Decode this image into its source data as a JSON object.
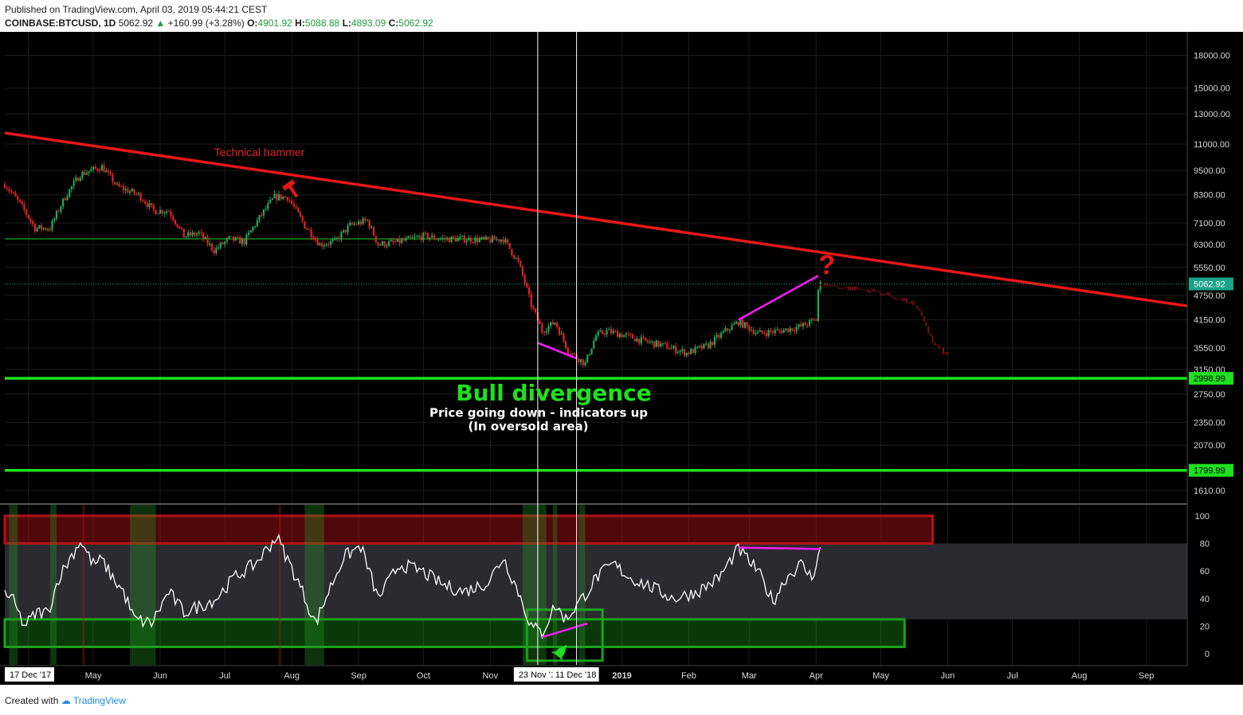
{
  "header": {
    "published": "Published on TradingView.com, April 03, 2019 05:44:21 CEST",
    "symbol": "COINBASE:BTCUSD, 1D",
    "last": "5062.92",
    "change_arrow": "▲",
    "change": "+160.99 (+3.28%)",
    "o_label": "O:",
    "o": "4901.92",
    "h_label": "H:",
    "h": "5088.88",
    "l_label": "L:",
    "l": "4893.09",
    "c_label": "C:",
    "c": "5062.92"
  },
  "footer": {
    "created": "Created with",
    "brand": "TradingView"
  },
  "colors": {
    "bull": "#26a65b",
    "bear": "#e02424",
    "trendline": "#e81717",
    "support": "#1ee01e",
    "divergence": "#ff1aff",
    "rsi": "#ffffff",
    "rsi_bg": "#000000",
    "overbought": "#b31217",
    "oversold": "#1aa31a"
  },
  "chart_data": [
    {
      "type": "candlestick",
      "title": "",
      "price_axis": {
        "scale": "log",
        "ticks": [
          1610,
          2070,
          2350,
          2750,
          3150,
          3550,
          4150,
          4750,
          5550,
          6300,
          7100,
          8300,
          9500,
          11000,
          13000,
          15000,
          18000
        ],
        "tick_labels": [
          "1610.00",
          "2070.00",
          "2350.00",
          "2750.00",
          "3150.00",
          "3550.00",
          "4150.00",
          "4750.00",
          "5550.00",
          "6300.00",
          "7100.00",
          "8300.00",
          "9500.00",
          "11000.00",
          "13000.00",
          "15000.00",
          "18000.00"
        ],
        "range": [
          1500,
          20500
        ],
        "last_price_label": "5062.92",
        "level_labels": [
          "2998.99",
          "1799.99"
        ]
      },
      "time_axis": {
        "range": [
          "2018-03-21",
          "2019-09-20"
        ],
        "labels": [
          {
            "date": "2018-04-01",
            "text": "Apr"
          },
          {
            "date": "2018-05-01",
            "text": "May"
          },
          {
            "date": "2018-06-01",
            "text": "Jun"
          },
          {
            "date": "2018-07-01",
            "text": "Jul"
          },
          {
            "date": "2018-08-01",
            "text": "Aug"
          },
          {
            "date": "2018-09-01",
            "text": "Sep"
          },
          {
            "date": "2018-10-01",
            "text": "Oct"
          },
          {
            "date": "2018-11-01",
            "text": "Nov"
          },
          {
            "date": "2019-01-01",
            "text": "2019"
          },
          {
            "date": "2019-02-01",
            "text": "Feb"
          },
          {
            "date": "2019-03-01",
            "text": "Mar"
          },
          {
            "date": "2019-04-01",
            "text": "Apr"
          },
          {
            "date": "2019-05-01",
            "text": "May"
          },
          {
            "date": "2019-06-01",
            "text": "Jun"
          },
          {
            "date": "2019-07-01",
            "text": "Jul"
          },
          {
            "date": "2019-08-01",
            "text": "Aug"
          },
          {
            "date": "2019-09-01",
            "text": "Sep"
          }
        ],
        "start_label": "17 Dec '17",
        "marker_labels": [
          "23 Nov '1",
          "11 Dec '18"
        ]
      },
      "close_path": [
        [
          "2018-03-21",
          8800
        ],
        [
          "2018-03-28",
          7900
        ],
        [
          "2018-04-04",
          6900
        ],
        [
          "2018-04-11",
          6900
        ],
        [
          "2018-04-18",
          8200
        ],
        [
          "2018-04-25",
          9300
        ],
        [
          "2018-05-05",
          9700
        ],
        [
          "2018-05-12",
          8700
        ],
        [
          "2018-05-22",
          8300
        ],
        [
          "2018-05-29",
          7600
        ],
        [
          "2018-06-05",
          7600
        ],
        [
          "2018-06-12",
          6600
        ],
        [
          "2018-06-19",
          6700
        ],
        [
          "2018-06-26",
          6100
        ],
        [
          "2018-07-03",
          6500
        ],
        [
          "2018-07-10",
          6400
        ],
        [
          "2018-07-17",
          7300
        ],
        [
          "2018-07-24",
          8200
        ],
        [
          "2018-07-30",
          8200
        ],
        [
          "2018-08-07",
          7000
        ],
        [
          "2018-08-14",
          6300
        ],
        [
          "2018-08-21",
          6400
        ],
        [
          "2018-08-28",
          7000
        ],
        [
          "2018-09-05",
          7200
        ],
        [
          "2018-09-10",
          6300
        ],
        [
          "2018-09-20",
          6400
        ],
        [
          "2018-10-01",
          6600
        ],
        [
          "2018-10-10",
          6500
        ],
        [
          "2018-10-20",
          6500
        ],
        [
          "2018-10-31",
          6450
        ],
        [
          "2018-11-07",
          6500
        ],
        [
          "2018-11-14",
          5700
        ],
        [
          "2018-11-20",
          4500
        ],
        [
          "2018-11-25",
          3900
        ],
        [
          "2018-12-01",
          4100
        ],
        [
          "2018-12-07",
          3500
        ],
        [
          "2018-12-15",
          3250
        ],
        [
          "2018-12-20",
          3800
        ],
        [
          "2018-12-25",
          3900
        ],
        [
          "2019-01-03",
          3800
        ],
        [
          "2019-01-10",
          3700
        ],
        [
          "2019-01-20",
          3600
        ],
        [
          "2019-01-31",
          3450
        ],
        [
          "2019-02-10",
          3600
        ],
        [
          "2019-02-18",
          3900
        ],
        [
          "2019-02-24",
          4100
        ],
        [
          "2019-03-05",
          3850
        ],
        [
          "2019-03-15",
          3900
        ],
        [
          "2019-03-25",
          4000
        ],
        [
          "2019-04-01",
          4150
        ],
        [
          "2019-04-02",
          4900
        ],
        [
          "2019-04-03",
          5062.92
        ]
      ],
      "projection_path": [
        [
          "2019-04-03",
          5062
        ],
        [
          "2019-04-15",
          4950
        ],
        [
          "2019-04-25",
          4900
        ],
        [
          "2019-05-05",
          4750
        ],
        [
          "2019-05-15",
          4550
        ],
        [
          "2019-05-20",
          4250
        ],
        [
          "2019-05-25",
          3650
        ],
        [
          "2019-06-01",
          3400
        ]
      ],
      "trendline": [
        [
          "2018-03-21",
          11700
        ],
        [
          "2019-09-20",
          4480
        ]
      ],
      "horizontal_levels": [
        2998.99,
        1799.99
      ],
      "consolidation_line": {
        "from": "2018-03-21",
        "to": "2018-10-31",
        "value": 6500
      },
      "divergence_lines": [
        {
          "from": [
            "2018-11-23",
            3650
          ],
          "to": [
            "2018-12-11",
            3350
          ]
        },
        {
          "from": [
            "2019-02-24",
            4150
          ],
          "to": [
            "2019-04-02",
            5300
          ]
        }
      ],
      "vertical_markers": [
        "2018-11-23",
        "2018-12-11"
      ],
      "annotations": {
        "hammer_text": "Technical hammer",
        "question": "?",
        "bull_divergence": "Bull divergence",
        "subtext_1": "Price going down - indicators up",
        "subtext_2": "(In oversold area)"
      }
    },
    {
      "type": "line",
      "title": "",
      "ylim": [
        -8,
        108
      ],
      "y_ticks": [
        0,
        20,
        40,
        60,
        80,
        100
      ],
      "overbought_band": [
        80,
        100
      ],
      "oversold_band": [
        5,
        25
      ],
      "mid_band": [
        25,
        80
      ],
      "values_path": [
        [
          "2018-03-21",
          45
        ],
        [
          "2018-03-25",
          38
        ],
        [
          "2018-03-30",
          20
        ],
        [
          "2018-04-05",
          30
        ],
        [
          "2018-04-10",
          30
        ],
        [
          "2018-04-15",
          55
        ],
        [
          "2018-04-25",
          82
        ],
        [
          "2018-05-01",
          65
        ],
        [
          "2018-05-05",
          68
        ],
        [
          "2018-05-10",
          55
        ],
        [
          "2018-05-15",
          45
        ],
        [
          "2018-05-20",
          25
        ],
        [
          "2018-05-28",
          22
        ],
        [
          "2018-06-05",
          45
        ],
        [
          "2018-06-12",
          30
        ],
        [
          "2018-06-20",
          35
        ],
        [
          "2018-06-27",
          40
        ],
        [
          "2018-07-05",
          55
        ],
        [
          "2018-07-15",
          65
        ],
        [
          "2018-07-25",
          85
        ],
        [
          "2018-08-01",
          62
        ],
        [
          "2018-08-06",
          45
        ],
        [
          "2018-08-12",
          22
        ],
        [
          "2018-08-18",
          45
        ],
        [
          "2018-08-25",
          70
        ],
        [
          "2018-09-02",
          78
        ],
        [
          "2018-09-10",
          40
        ],
        [
          "2018-09-20",
          65
        ],
        [
          "2018-09-30",
          60
        ],
        [
          "2018-10-10",
          50
        ],
        [
          "2018-10-20",
          45
        ],
        [
          "2018-10-31",
          52
        ],
        [
          "2018-11-07",
          70
        ],
        [
          "2018-11-14",
          45
        ],
        [
          "2018-11-20",
          20
        ],
        [
          "2018-11-25",
          15
        ],
        [
          "2018-12-01",
          35
        ],
        [
          "2018-12-06",
          25
        ],
        [
          "2018-12-11",
          35
        ],
        [
          "2018-12-16",
          45
        ],
        [
          "2018-12-20",
          55
        ],
        [
          "2018-12-28",
          65
        ],
        [
          "2019-01-05",
          55
        ],
        [
          "2019-01-15",
          48
        ],
        [
          "2019-01-25",
          40
        ],
        [
          "2019-02-05",
          45
        ],
        [
          "2019-02-15",
          55
        ],
        [
          "2019-02-24",
          76
        ],
        [
          "2019-03-05",
          60
        ],
        [
          "2019-03-12",
          38
        ],
        [
          "2019-03-18",
          55
        ],
        [
          "2019-03-25",
          65
        ],
        [
          "2019-03-30",
          55
        ],
        [
          "2019-04-03",
          76
        ]
      ],
      "divergence_lines": [
        {
          "from": [
            "2018-11-25",
            12
          ],
          "to": [
            "2018-12-16",
            22
          ]
        },
        {
          "from": [
            "2019-02-24",
            77
          ],
          "to": [
            "2019-04-03",
            76
          ]
        }
      ],
      "oversold_box": {
        "from": "2018-11-18",
        "to": "2018-12-23",
        "range": [
          -5,
          32
        ]
      }
    }
  ]
}
